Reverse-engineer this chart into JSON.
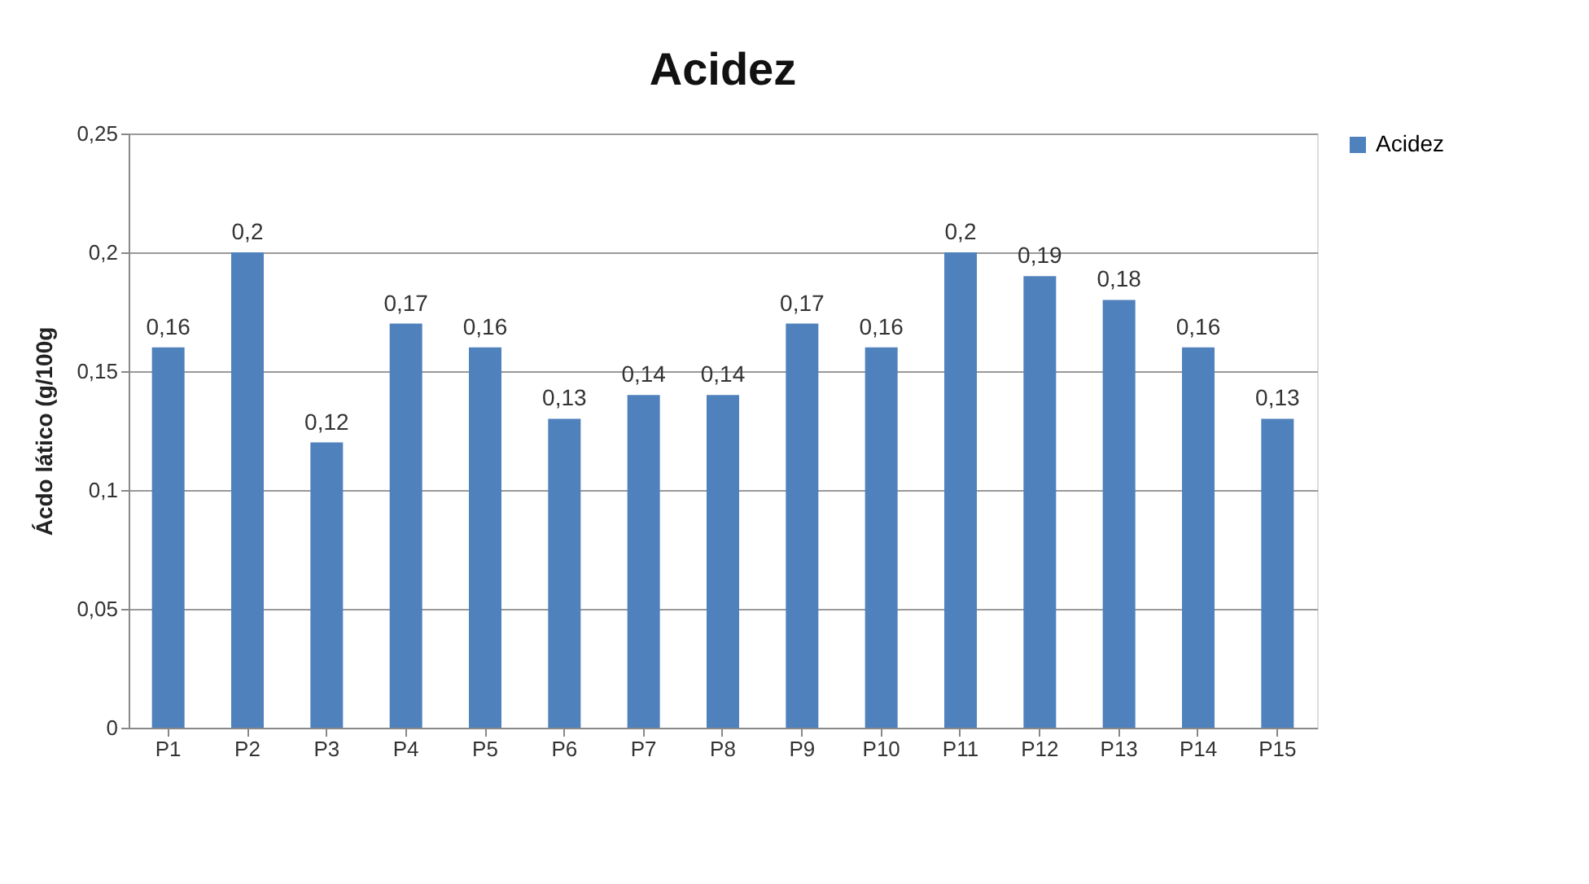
{
  "chart_data": {
    "type": "bar",
    "title": "Acidez",
    "ylabel": "Ácdo lático (g/100g",
    "categories": [
      "P1",
      "P2",
      "P3",
      "P4",
      "P5",
      "P6",
      "P7",
      "P8",
      "P9",
      "P10",
      "P11",
      "P12",
      "P13",
      "P14",
      "P15"
    ],
    "series": [
      {
        "name": "Acidez",
        "color": "#4f81bd",
        "values": [
          0.16,
          0.2,
          0.12,
          0.17,
          0.16,
          0.13,
          0.14,
          0.14,
          0.17,
          0.16,
          0.2,
          0.19,
          0.18,
          0.16,
          0.13
        ],
        "value_labels": [
          "0,16",
          "0,2",
          "0,12",
          "0,17",
          "0,16",
          "0,13",
          "0,14",
          "0,14",
          "0,17",
          "0,16",
          "0,2",
          "0,19",
          "0,18",
          "0,16",
          "0,13"
        ]
      }
    ],
    "ylim": [
      0,
      0.25
    ],
    "yticks": [
      {
        "value": 0,
        "label": "0"
      },
      {
        "value": 0.05,
        "label": "0,05"
      },
      {
        "value": 0.1,
        "label": "0,1"
      },
      {
        "value": 0.15,
        "label": "0,15"
      },
      {
        "value": 0.2,
        "label": "0,2"
      },
      {
        "value": 0.25,
        "label": "0,25"
      }
    ],
    "grid": "y",
    "legend": "right"
  }
}
